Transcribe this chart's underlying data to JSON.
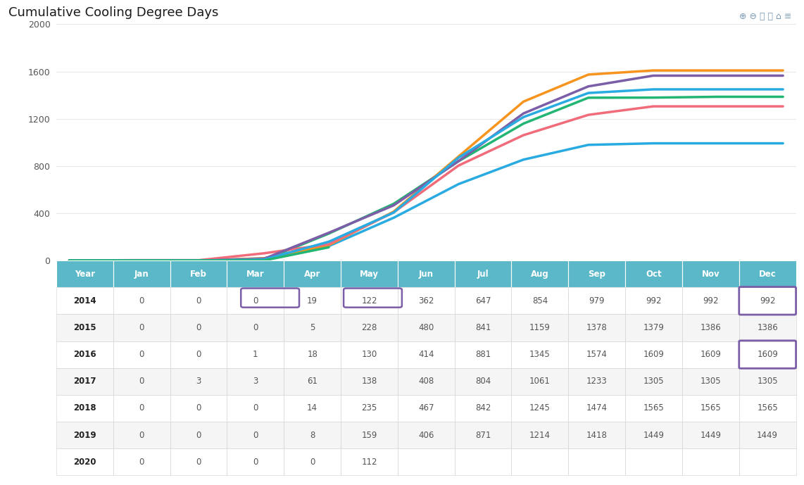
{
  "title": "Cumulative Cooling Degree Days",
  "months": [
    "Jan",
    "Feb",
    "Mar",
    "Apr",
    "May",
    "Jun",
    "Jul",
    "Aug",
    "Sep",
    "Oct",
    "Nov",
    "Dec"
  ],
  "years": [
    "2014",
    "2015",
    "2016",
    "2017",
    "2018",
    "2019",
    "2020"
  ],
  "series": {
    "2014": [
      0,
      0,
      0,
      19,
      122,
      362,
      647,
      854,
      979,
      992,
      992,
      992
    ],
    "2015": [
      0,
      0,
      0,
      5,
      228,
      480,
      841,
      1159,
      1378,
      1379,
      1386,
      1386
    ],
    "2016": [
      0,
      0,
      1,
      18,
      130,
      414,
      881,
      1345,
      1574,
      1609,
      1609,
      1609
    ],
    "2017": [
      0,
      3,
      3,
      61,
      138,
      408,
      804,
      1061,
      1233,
      1305,
      1305,
      1305
    ],
    "2018": [
      0,
      0,
      0,
      14,
      235,
      467,
      842,
      1245,
      1474,
      1565,
      1565,
      1565
    ],
    "2019": [
      0,
      0,
      0,
      8,
      159,
      406,
      871,
      1214,
      1418,
      1449,
      1449,
      1449
    ],
    "2020": [
      0,
      0,
      0,
      0,
      112,
      null,
      null,
      null,
      null,
      null,
      null,
      null
    ]
  },
  "colors": {
    "2014": "#29abe2",
    "2015": "#22b573",
    "2016": "#f7941d",
    "2017": "#f06c7a",
    "2018": "#7b5ea7",
    "2019": "#29abe2",
    "2020": "#22b573"
  },
  "ylim": [
    0,
    2000
  ],
  "yticks": [
    0,
    400,
    800,
    1200,
    1600,
    2000
  ],
  "table_header_bg": "#5bb8c8",
  "table_row_colors": [
    "#ffffff",
    "#f5f5f5"
  ],
  "table_text_color": "#555555",
  "table_year_color": "#222222",
  "table_highlight_color": "#7b5ea7",
  "highlighted_cells": [
    {
      "year": "2014",
      "month_idx": 12
    },
    {
      "year": "2016",
      "month_idx": 12
    }
  ],
  "background_color": "#ffffff",
  "grid_color": "#e8e8e8",
  "legend_box_years": [
    "2014",
    "2016"
  ],
  "line_width": 2.5,
  "col_labels": [
    "Year",
    "Jan",
    "Feb",
    "Mar",
    "Apr",
    "May",
    "Jun",
    "Jul",
    "Aug",
    "Sep",
    "Oct",
    "Nov",
    "Dec"
  ]
}
